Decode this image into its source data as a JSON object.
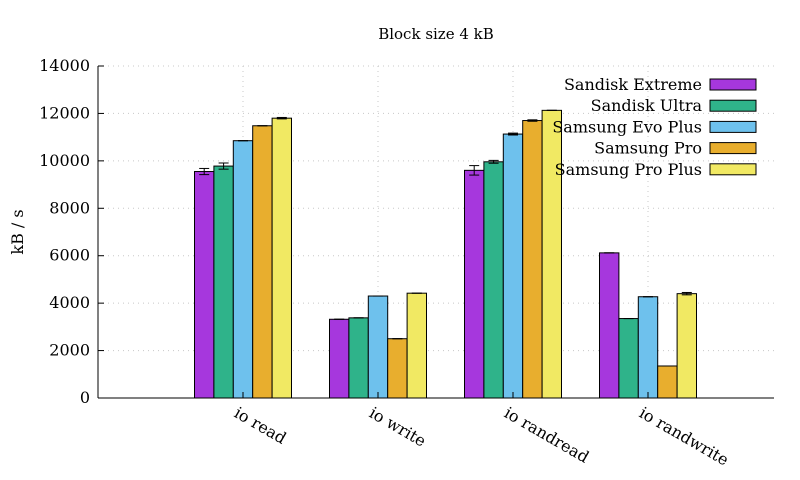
{
  "chart_data": {
    "type": "bar",
    "title": "Block size 4 kB",
    "xlabel": "",
    "ylabel": "kB / s",
    "ylim": [
      0,
      14000
    ],
    "yticks": [
      0,
      2000,
      4000,
      6000,
      8000,
      10000,
      12000,
      14000
    ],
    "grid": true,
    "legend_position": "top-right",
    "categories": [
      "io read",
      "io write",
      "io randread",
      "io randwrite"
    ],
    "series": [
      {
        "name": "Sandisk Extreme",
        "color": "#a637dd",
        "values": [
          9550,
          3320,
          9600,
          6120
        ],
        "errors": [
          130,
          0,
          200,
          0
        ]
      },
      {
        "name": "Sandisk Ultra",
        "color": "#2fb38a",
        "values": [
          9780,
          3380,
          9960,
          3350
        ],
        "errors": [
          130,
          0,
          60,
          0
        ]
      },
      {
        "name": "Samsung Evo Plus",
        "color": "#6ec1ed",
        "values": [
          10850,
          4300,
          11130,
          4270
        ],
        "errors": [
          0,
          0,
          40,
          0
        ]
      },
      {
        "name": "Samsung Pro",
        "color": "#e8ae2e",
        "values": [
          11480,
          2500,
          11700,
          1350
        ],
        "errors": [
          0,
          0,
          30,
          0
        ]
      },
      {
        "name": "Samsung Pro Plus",
        "color": "#f1e963",
        "values": [
          11800,
          4420,
          12130,
          4400
        ],
        "errors": [
          30,
          0,
          0,
          50
        ]
      }
    ]
  }
}
